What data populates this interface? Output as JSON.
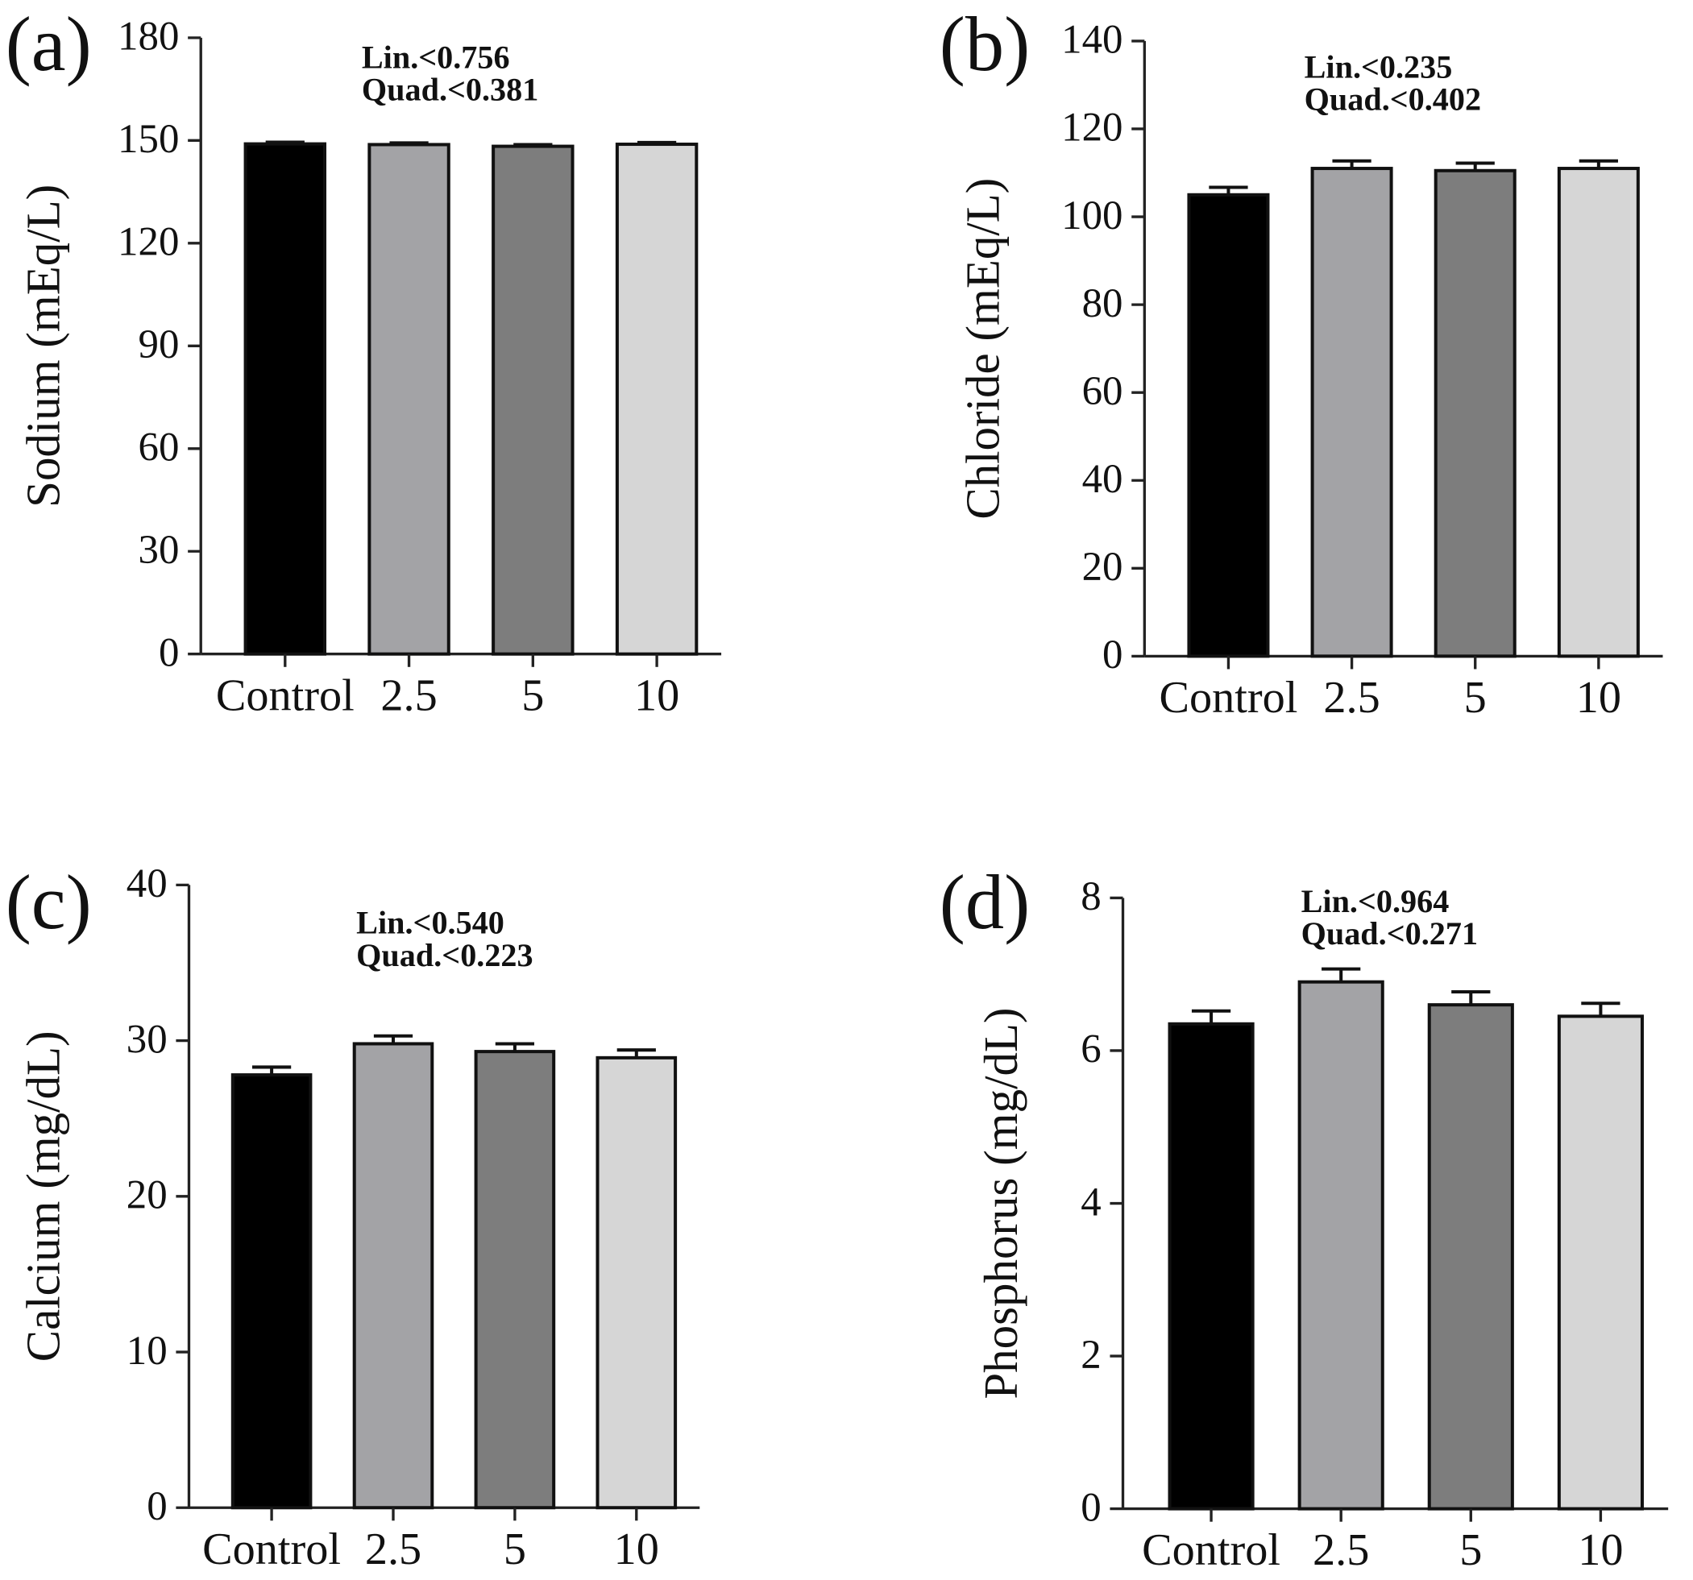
{
  "chart_data": [
    {
      "panel": "(a)",
      "type": "bar",
      "categories": [
        "Control",
        "2.5",
        "5",
        "10"
      ],
      "values": [
        149,
        148.8,
        148.3,
        148.9
      ],
      "errors": [
        0.5,
        0.5,
        0.5,
        0.5
      ],
      "ylabel": "Sodium (mEq/L)",
      "xlabel": "",
      "ylim": [
        0,
        180
      ],
      "yticks": [
        0,
        30,
        60,
        90,
        120,
        150,
        180
      ],
      "annotations": [
        "Lin.<0.756",
        "Quad.<0.381"
      ],
      "colors": [
        "#000000",
        "#a3a3a6",
        "#7d7d7d",
        "#d6d6d6"
      ]
    },
    {
      "panel": "(b)",
      "type": "bar",
      "categories": [
        "Control",
        "2.5",
        "5",
        "10"
      ],
      "values": [
        105,
        111,
        110.5,
        111
      ],
      "errors": [
        1.7,
        1.7,
        1.7,
        1.7
      ],
      "ylabel": "Chloride (mEq/L)",
      "xlabel": "",
      "ylim": [
        0,
        140
      ],
      "yticks": [
        0,
        20,
        40,
        60,
        80,
        100,
        120,
        140
      ],
      "annotations": [
        "Lin.<0.235",
        "Quad.<0.402"
      ],
      "colors": [
        "#000000",
        "#a3a3a6",
        "#7d7d7d",
        "#d6d6d6"
      ]
    },
    {
      "panel": "(c)",
      "type": "bar",
      "categories": [
        "Control",
        "2.5",
        "5",
        "10"
      ],
      "values": [
        27.8,
        29.8,
        29.3,
        28.9
      ],
      "errors": [
        0.5,
        0.5,
        0.5,
        0.5
      ],
      "ylabel": "Calcium (mg/dL)",
      "xlabel": "",
      "ylim": [
        0,
        40
      ],
      "yticks": [
        0,
        10,
        20,
        30,
        40
      ],
      "annotations": [
        "Lin.<0.540",
        "Quad.<0.223"
      ],
      "colors": [
        "#000000",
        "#a3a3a6",
        "#7d7d7d",
        "#d6d6d6"
      ]
    },
    {
      "panel": "(d)",
      "type": "bar",
      "categories": [
        "Control",
        "2.5",
        "5",
        "10"
      ],
      "values": [
        6.35,
        6.9,
        6.6,
        6.45
      ],
      "errors": [
        0.17,
        0.17,
        0.17,
        0.17
      ],
      "ylabel": "Phosphorus (mg/dL)",
      "xlabel": "",
      "ylim": [
        0,
        8
      ],
      "yticks": [
        0,
        2,
        4,
        6,
        8
      ],
      "annotations": [
        "Lin.<0.964",
        "Quad.<0.271"
      ],
      "colors": [
        "#000000",
        "#a3a3a6",
        "#7d7d7d",
        "#d6d6d6"
      ]
    }
  ]
}
